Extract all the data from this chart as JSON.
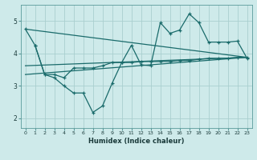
{
  "xlabel": "Humidex (Indice chaleur)",
  "bg_color": "#ceeaea",
  "grid_color": "#aacfcf",
  "line_color": "#1a6b6b",
  "xlim": [
    -0.5,
    23.5
  ],
  "ylim": [
    1.7,
    5.5
  ],
  "yticks": [
    2,
    3,
    4,
    5
  ],
  "xticks": [
    0,
    1,
    2,
    3,
    4,
    5,
    6,
    7,
    8,
    9,
    10,
    11,
    12,
    13,
    14,
    15,
    16,
    17,
    18,
    19,
    20,
    21,
    22,
    23
  ],
  "series1_x": [
    0,
    1,
    2,
    3,
    4,
    5,
    6,
    7,
    8,
    9,
    10,
    11,
    12,
    13,
    14,
    15,
    16,
    17,
    18,
    19,
    20,
    21,
    22,
    23
  ],
  "series1_y": [
    4.75,
    4.25,
    3.35,
    3.25,
    3.0,
    2.78,
    2.78,
    2.18,
    2.38,
    3.08,
    3.72,
    4.25,
    3.65,
    3.62,
    4.95,
    4.62,
    4.72,
    5.22,
    4.95,
    4.35,
    4.35,
    4.35,
    4.38,
    3.85
  ],
  "series2_x": [
    1,
    2,
    3,
    4,
    5,
    6,
    7,
    8,
    9,
    10,
    11,
    12,
    13,
    14,
    15,
    16,
    17,
    18,
    19,
    20,
    21,
    22,
    23
  ],
  "series2_y": [
    4.25,
    3.35,
    3.35,
    3.25,
    3.55,
    3.55,
    3.55,
    3.62,
    3.72,
    3.72,
    3.72,
    3.75,
    3.75,
    3.75,
    3.75,
    3.78,
    3.78,
    3.82,
    3.85,
    3.85,
    3.85,
    3.88,
    3.88
  ],
  "line1_x": [
    0,
    23
  ],
  "line1_y": [
    4.75,
    3.88
  ],
  "line2_x": [
    0,
    23
  ],
  "line2_y": [
    3.62,
    3.88
  ],
  "line3_x": [
    0,
    23
  ],
  "line3_y": [
    3.35,
    3.88
  ]
}
